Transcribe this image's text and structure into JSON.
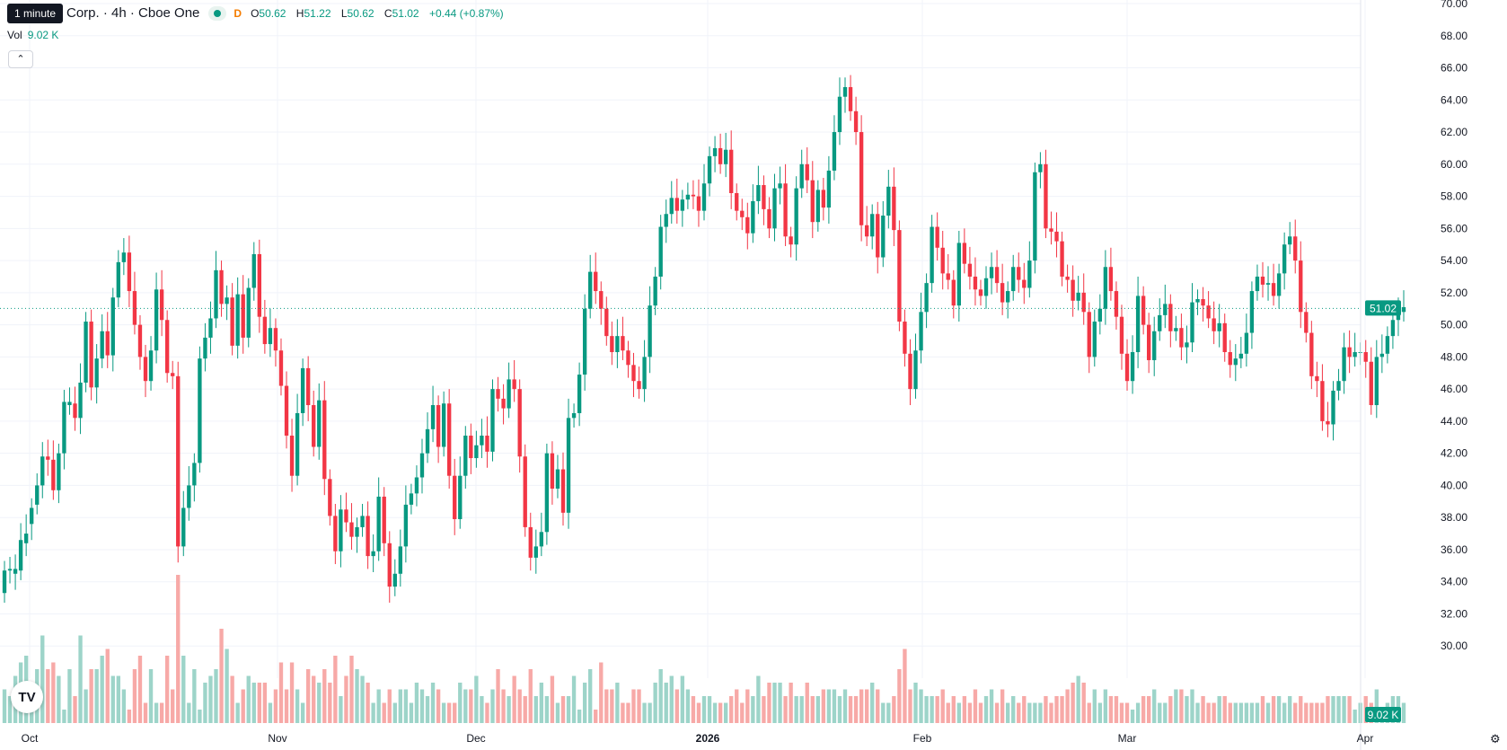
{
  "header": {
    "tooltip": "1 minute",
    "symbol": "Corp. · 4h · Cboe One",
    "interval_badge": "D",
    "ohlc": {
      "o_label": "O",
      "o": "50.62",
      "h_label": "H",
      "h": "51.22",
      "l_label": "L",
      "l": "50.62",
      "c_label": "C",
      "c": "51.02",
      "change": "+0.44 (+0.87%)"
    },
    "vol_label": "Vol",
    "vol_value": "9.02 K",
    "collapse_icon": "chevron-up-icon"
  },
  "badges": {
    "price": "51.02",
    "volume": "9.02 K"
  },
  "colors": {
    "up": "#089981",
    "down": "#f23645",
    "vol_up": "#9dd4c9",
    "vol_down": "#f7a9a7",
    "grid": "#f0f3fa",
    "axis_text": "#131722"
  },
  "chart_data": {
    "type": "candlestick",
    "y_axis": {
      "min": 28,
      "max": 70,
      "ticks": [
        "30.00",
        "32.00",
        "34.00",
        "36.00",
        "38.00",
        "40.00",
        "42.00",
        "44.00",
        "46.00",
        "48.00",
        "50.00",
        "52.00",
        "54.00",
        "56.00",
        "58.00",
        "60.00",
        "62.00",
        "64.00",
        "66.00",
        "68.00",
        "70.00"
      ]
    },
    "x_axis": {
      "ticks": [
        "Oct",
        "Nov",
        "Dec",
        "2026",
        "Feb",
        "Mar",
        "Apr"
      ],
      "bold": [
        "2026"
      ]
    },
    "last_price": 51.02,
    "candles": [
      [
        33.3,
        34.7
      ],
      [
        34.7,
        34.8
      ],
      [
        34.5,
        34.8
      ],
      [
        34.7,
        36.6
      ],
      [
        36.4,
        37.0
      ],
      [
        37.6,
        38.6
      ],
      [
        38.8,
        40.0
      ],
      [
        40.0,
        41.8
      ],
      [
        41.8,
        41.6
      ],
      [
        41.6,
        39.7
      ],
      [
        39.7,
        42.0
      ],
      [
        42.0,
        45.2
      ],
      [
        45.0,
        45.2
      ],
      [
        45.1,
        44.2
      ],
      [
        44.2,
        46.4
      ],
      [
        46.4,
        50.2
      ],
      [
        50.2,
        46.1
      ],
      [
        46.1,
        47.9
      ],
      [
        47.9,
        49.6
      ],
      [
        49.6,
        48.1
      ],
      [
        48.1,
        51.7
      ],
      [
        51.7,
        53.9
      ],
      [
        53.9,
        54.5
      ],
      [
        54.5,
        52.1
      ],
      [
        52.1,
        50.0
      ],
      [
        50.0,
        48.0
      ],
      [
        48.0,
        46.5
      ],
      [
        46.5,
        48.4
      ],
      [
        48.4,
        52.2
      ],
      [
        52.2,
        50.3
      ],
      [
        50.3,
        47.0
      ],
      [
        47.0,
        46.8
      ],
      [
        46.8,
        36.2
      ],
      [
        36.2,
        38.6
      ],
      [
        38.6,
        40.0
      ],
      [
        40.0,
        41.4
      ],
      [
        41.4,
        47.9
      ],
      [
        47.9,
        49.2
      ],
      [
        49.2,
        50.4
      ],
      [
        50.4,
        53.4
      ],
      [
        53.4,
        51.3
      ],
      [
        51.3,
        51.7
      ],
      [
        51.7,
        48.7
      ],
      [
        48.7,
        51.9
      ],
      [
        51.9,
        49.2
      ],
      [
        49.2,
        52.3
      ],
      [
        52.3,
        54.4
      ],
      [
        54.4,
        50.5
      ],
      [
        50.5,
        48.8
      ],
      [
        48.8,
        49.8
      ],
      [
        49.8,
        48.4
      ],
      [
        48.4,
        46.2
      ],
      [
        46.2,
        43.1
      ],
      [
        43.1,
        40.6
      ],
      [
        40.6,
        44.5
      ],
      [
        44.5,
        47.3
      ],
      [
        47.3,
        45.0
      ],
      [
        45.0,
        42.4
      ],
      [
        42.4,
        45.3
      ],
      [
        45.3,
        40.4
      ],
      [
        40.4,
        38.1
      ],
      [
        38.1,
        35.9
      ],
      [
        35.9,
        38.5
      ],
      [
        38.5,
        37.7
      ],
      [
        37.7,
        36.8
      ],
      [
        36.8,
        37.4
      ],
      [
        37.4,
        38.1
      ],
      [
        38.1,
        35.6
      ],
      [
        35.6,
        35.9
      ],
      [
        35.9,
        39.3
      ],
      [
        39.3,
        36.4
      ],
      [
        36.4,
        33.7
      ],
      [
        33.7,
        34.5
      ],
      [
        34.5,
        36.2
      ],
      [
        36.2,
        38.8
      ],
      [
        38.8,
        39.5
      ],
      [
        39.5,
        40.5
      ],
      [
        40.5,
        42.0
      ],
      [
        42.0,
        43.5
      ],
      [
        43.5,
        45.0
      ],
      [
        45.0,
        42.4
      ],
      [
        42.4,
        45.1
      ],
      [
        45.1,
        40.6
      ],
      [
        40.6,
        37.9
      ],
      [
        37.9,
        40.6
      ],
      [
        40.6,
        43.1
      ],
      [
        43.1,
        41.7
      ],
      [
        41.7,
        42.5
      ],
      [
        42.5,
        43.1
      ],
      [
        43.1,
        42.1
      ],
      [
        42.1,
        46.0
      ],
      [
        46.0,
        45.4
      ],
      [
        45.4,
        44.8
      ],
      [
        44.8,
        46.6
      ],
      [
        46.6,
        46.0
      ],
      [
        46.0,
        41.8
      ],
      [
        41.8,
        37.4
      ],
      [
        37.4,
        35.5
      ],
      [
        35.5,
        36.2
      ],
      [
        36.2,
        37.1
      ],
      [
        37.1,
        42.0
      ],
      [
        42.0,
        39.8
      ],
      [
        39.8,
        41.0
      ],
      [
        41.0,
        38.3
      ],
      [
        38.3,
        44.2
      ],
      [
        44.2,
        44.5
      ],
      [
        44.5,
        46.9
      ],
      [
        46.9,
        51.0
      ],
      [
        51.0,
        53.3
      ],
      [
        53.3,
        52.1
      ],
      [
        52.1,
        51.0
      ],
      [
        51.0,
        49.3
      ],
      [
        49.3,
        48.3
      ],
      [
        48.3,
        49.3
      ],
      [
        49.3,
        48.4
      ],
      [
        48.4,
        47.5
      ],
      [
        47.5,
        46.5
      ],
      [
        46.5,
        46.0
      ],
      [
        46.0,
        48.0
      ],
      [
        48.0,
        51.2
      ],
      [
        51.2,
        53.0
      ],
      [
        53.0,
        56.1
      ],
      [
        56.1,
        56.9
      ],
      [
        56.9,
        57.9
      ],
      [
        57.9,
        57.1
      ],
      [
        57.1,
        57.8
      ],
      [
        57.8,
        58.1
      ],
      [
        58.1,
        58.0
      ],
      [
        58.0,
        57.1
      ],
      [
        57.1,
        58.8
      ],
      [
        58.8,
        60.5
      ],
      [
        60.5,
        61.0
      ],
      [
        61.0,
        60.0
      ],
      [
        60.0,
        60.9
      ],
      [
        60.9,
        58.2
      ],
      [
        58.2,
        57.1
      ],
      [
        57.1,
        56.7
      ],
      [
        56.7,
        55.7
      ],
      [
        55.7,
        57.7
      ],
      [
        57.7,
        58.7
      ],
      [
        58.7,
        57.2
      ],
      [
        57.2,
        56.0
      ],
      [
        56.0,
        58.5
      ],
      [
        58.5,
        58.8
      ],
      [
        58.8,
        55.5
      ],
      [
        55.5,
        55.0
      ],
      [
        55.0,
        58.5
      ],
      [
        58.5,
        60.0
      ],
      [
        60.0,
        59.0
      ],
      [
        59.0,
        56.4
      ],
      [
        56.4,
        58.4
      ],
      [
        58.4,
        57.3
      ],
      [
        57.3,
        59.6
      ],
      [
        59.6,
        62.0
      ],
      [
        62.0,
        64.2
      ],
      [
        64.2,
        64.8
      ],
      [
        64.8,
        63.3
      ],
      [
        63.3,
        62.0
      ],
      [
        62.0,
        56.2
      ],
      [
        56.2,
        55.5
      ],
      [
        55.5,
        56.9
      ],
      [
        56.9,
        54.2
      ],
      [
        54.2,
        56.8
      ],
      [
        56.8,
        58.6
      ],
      [
        58.6,
        55.9
      ],
      [
        55.9,
        50.2
      ],
      [
        50.2,
        48.2
      ],
      [
        48.2,
        46.0
      ],
      [
        46.0,
        48.4
      ],
      [
        48.4,
        50.8
      ],
      [
        50.8,
        52.6
      ],
      [
        52.6,
        56.1
      ],
      [
        56.1,
        54.8
      ],
      [
        54.8,
        53.2
      ],
      [
        53.2,
        52.8
      ],
      [
        52.8,
        51.2
      ],
      [
        51.2,
        55.1
      ],
      [
        55.1,
        53.8
      ],
      [
        53.8,
        53.0
      ],
      [
        53.0,
        52.2
      ],
      [
        52.2,
        51.8
      ],
      [
        51.8,
        52.9
      ],
      [
        52.9,
        53.6
      ],
      [
        53.6,
        52.6
      ],
      [
        52.6,
        51.4
      ],
      [
        51.4,
        52.1
      ],
      [
        52.1,
        53.6
      ],
      [
        53.6,
        52.8
      ],
      [
        52.8,
        52.3
      ],
      [
        52.3,
        54.0
      ],
      [
        54.0,
        59.5
      ],
      [
        59.5,
        60.0
      ],
      [
        60.0,
        56.0
      ],
      [
        56.0,
        55.8
      ],
      [
        55.8,
        55.2
      ],
      [
        55.2,
        53.0
      ],
      [
        53.0,
        52.8
      ],
      [
        52.8,
        51.5
      ],
      [
        51.5,
        52.0
      ],
      [
        52.0,
        50.8
      ],
      [
        50.8,
        48.0
      ],
      [
        48.0,
        50.2
      ],
      [
        50.2,
        51.0
      ],
      [
        51.0,
        53.6
      ],
      [
        53.6,
        52.1
      ],
      [
        52.1,
        50.5
      ],
      [
        50.5,
        48.2
      ],
      [
        48.2,
        46.5
      ],
      [
        46.5,
        48.3
      ],
      [
        48.3,
        51.8
      ],
      [
        51.8,
        50.0
      ],
      [
        50.0,
        47.8
      ],
      [
        47.8,
        49.6
      ],
      [
        49.6,
        50.6
      ],
      [
        50.6,
        51.3
      ],
      [
        51.3,
        49.6
      ],
      [
        49.6,
        49.8
      ],
      [
        49.8,
        48.6
      ],
      [
        48.6,
        48.9
      ],
      [
        48.9,
        51.4
      ],
      [
        51.4,
        51.6
      ],
      [
        51.6,
        51.2
      ],
      [
        51.2,
        50.4
      ],
      [
        50.4,
        49.6
      ],
      [
        49.6,
        50.1
      ],
      [
        50.1,
        48.3
      ],
      [
        48.3,
        47.5
      ],
      [
        47.5,
        47.9
      ],
      [
        47.9,
        48.2
      ],
      [
        48.2,
        49.5
      ],
      [
        49.5,
        52.1
      ],
      [
        52.1,
        53.0
      ],
      [
        53.0,
        52.5
      ],
      [
        52.5,
        52.6
      ],
      [
        52.6,
        51.8
      ],
      [
        51.8,
        53.2
      ],
      [
        53.2,
        55.0
      ],
      [
        55.0,
        55.5
      ],
      [
        55.5,
        54.0
      ],
      [
        54.0,
        50.8
      ],
      [
        50.8,
        49.5
      ],
      [
        49.5,
        46.8
      ],
      [
        46.8,
        46.5
      ],
      [
        46.5,
        44.0
      ],
      [
        44.0,
        43.8
      ],
      [
        43.8,
        45.9
      ],
      [
        45.9,
        46.5
      ],
      [
        46.5,
        48.6
      ],
      [
        48.6,
        48.0
      ],
      [
        48.0,
        48.3
      ],
      [
        48.3,
        48.3
      ],
      [
        48.3,
        47.7
      ],
      [
        47.7,
        45.0
      ],
      [
        45.0,
        48.0
      ],
      [
        48.0,
        48.2
      ],
      [
        48.2,
        49.3
      ],
      [
        49.3,
        50.3
      ],
      [
        50.3,
        50.8
      ],
      [
        50.8,
        51.1
      ]
    ],
    "volume": [
      33,
      32,
      35,
      37,
      38,
      33,
      36,
      41,
      36,
      37,
      35,
      30,
      36,
      32,
      41,
      33,
      36,
      36,
      38,
      39,
      35,
      35,
      33,
      30,
      36,
      38,
      31,
      36,
      31,
      31,
      38,
      33,
      50,
      38,
      31,
      36,
      30,
      34,
      35,
      36,
      42,
      39,
      35,
      31,
      33,
      35,
      34,
      34,
      34,
      31,
      33,
      37,
      33,
      37,
      33,
      31,
      36,
      35,
      34,
      36,
      34,
      38,
      32,
      35,
      38,
      36,
      35,
      34,
      31,
      33,
      31,
      33,
      31,
      33,
      33,
      31,
      34,
      33,
      32,
      34,
      33,
      31,
      31,
      31,
      34,
      33,
      33,
      35,
      32,
      31,
      33,
      36,
      33,
      32,
      35,
      33,
      32,
      36,
      32,
      34,
      32,
      35,
      31,
      32,
      32,
      35,
      30,
      34,
      36,
      30,
      37,
      33,
      33,
      34,
      31,
      31,
      33,
      33,
      31,
      31,
      34,
      36,
      34,
      35,
      33,
      35,
      33,
      32,
      31,
      32,
      32,
      31,
      31,
      31,
      32,
      33,
      31,
      33,
      32,
      35,
      32,
      34,
      34,
      34,
      32,
      34,
      32,
      32,
      34,
      32,
      32,
      33,
      33,
      33,
      32,
      33,
      32,
      32,
      33,
      33,
      34,
      33,
      31,
      31,
      32,
      36,
      39,
      33,
      34,
      33,
      32,
      32,
      32,
      33,
      31,
      32,
      31,
      32,
      31,
      33,
      31,
      32,
      33,
      31,
      33,
      31,
      32,
      31,
      32,
      31,
      31,
      31,
      32,
      31,
      32,
      32,
      33,
      34,
      35,
      34,
      31,
      33,
      31,
      33,
      32,
      32,
      31,
      31,
      30,
      31,
      32,
      32,
      33,
      31,
      31,
      32,
      33,
      33,
      32,
      33,
      31,
      32,
      31,
      31,
      32,
      32,
      31,
      31,
      31,
      31,
      31,
      31,
      32,
      31,
      32,
      32,
      31,
      32,
      31,
      32,
      31,
      31,
      31,
      31,
      32,
      32,
      32,
      32,
      32,
      30,
      31,
      32,
      31,
      33,
      30,
      31,
      32,
      32,
      31,
      31,
      32,
      30,
      31,
      31,
      31,
      31,
      31,
      31,
      31,
      30,
      31,
      31,
      31,
      31,
      31,
      31,
      31,
      31,
      31,
      31
    ]
  }
}
